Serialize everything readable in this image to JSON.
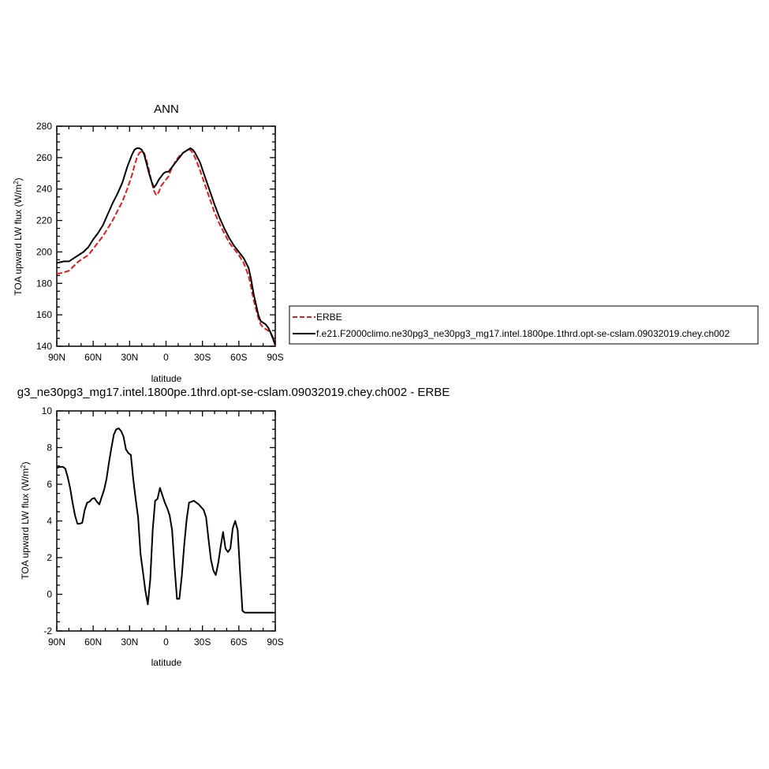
{
  "colors": {
    "erbe": "#e41a1c",
    "model": "#000000",
    "frame": "#000000"
  },
  "chart_data": [
    {
      "type": "line",
      "title": "ANN",
      "xlabel": "latitude",
      "ylabel_main": "TOA upward LW flux (W/m",
      "ylabel_sup": "2",
      "ylabel_close": ")",
      "xlim": [
        -90,
        90
      ],
      "ylim": [
        140,
        280
      ],
      "x_ticks": [
        -90,
        -60,
        -30,
        0,
        30,
        60,
        90
      ],
      "x_tick_labels": [
        "90N",
        "60N",
        "30N",
        "0",
        "30S",
        "60S",
        "90S"
      ],
      "y_ticks": [
        140,
        160,
        180,
        200,
        220,
        240,
        260,
        280
      ],
      "y_tick_labels": [
        "140",
        "160",
        "180",
        "200",
        "220",
        "240",
        "260",
        "280"
      ],
      "legend": {
        "placement": "right",
        "entries": [
          "ERBE",
          "f.e21.F2000climo.ne30pg3_ne30pg3_mg17.intel.1800pe.1thrd.opt-se-cslam.09032019.chey.ch002"
        ]
      },
      "series": [
        {
          "name": "ERBE",
          "style": "dashed",
          "x": [
            -90,
            -84,
            -80,
            -76,
            -72,
            -68,
            -64,
            -60,
            -56,
            -52,
            -48,
            -44,
            -40,
            -36,
            -32,
            -28,
            -26,
            -24,
            -22,
            -20,
            -18,
            -16,
            -14,
            -12,
            -10,
            -8,
            -6,
            -4,
            -2,
            0,
            2,
            4,
            6,
            8,
            10,
            12,
            14,
            16,
            18,
            20,
            22,
            24,
            26,
            28,
            32,
            36,
            40,
            44,
            48,
            52,
            56,
            60,
            64,
            68,
            70,
            72,
            74,
            76,
            78,
            80,
            82,
            84,
            86,
            88,
            90
          ],
          "y": [
            186,
            187,
            188,
            191,
            194,
            196,
            198,
            202,
            206,
            210,
            215,
            220,
            226,
            232,
            240,
            249,
            255,
            260,
            263,
            264,
            263,
            258,
            252,
            245,
            239,
            236,
            238,
            242,
            244,
            246,
            248,
            252,
            255,
            258,
            260,
            262,
            263,
            264,
            265,
            265,
            263,
            260,
            256,
            252,
            243,
            234,
            225,
            218,
            212,
            206,
            202,
            198,
            193,
            185,
            178,
            170,
            164,
            158,
            154,
            152,
            151,
            150,
            149,
            146,
            140
          ]
        },
        {
          "name": "f.e21.F2000climo.ne30pg3_ne30pg3_mg17.intel.1800pe.1thrd.opt-se-cslam.09032019.chey.ch002",
          "style": "solid",
          "x": [
            -90,
            -84,
            -80,
            -76,
            -72,
            -68,
            -64,
            -60,
            -56,
            -52,
            -48,
            -44,
            -40,
            -36,
            -32,
            -28,
            -26,
            -24,
            -22,
            -20,
            -18,
            -16,
            -14,
            -12,
            -10,
            -8,
            -6,
            -4,
            -2,
            0,
            2,
            4,
            6,
            8,
            10,
            12,
            14,
            16,
            18,
            20,
            22,
            24,
            26,
            28,
            32,
            36,
            40,
            44,
            48,
            52,
            56,
            60,
            64,
            68,
            70,
            72,
            74,
            76,
            78,
            80,
            82,
            84,
            86,
            88,
            90
          ],
          "y": [
            193,
            194,
            194,
            196,
            198,
            200,
            203,
            208,
            212,
            217,
            224,
            231,
            237,
            244,
            254,
            262,
            265,
            266,
            266,
            265,
            262,
            256,
            250,
            245,
            241,
            243,
            246,
            248,
            250,
            251,
            251,
            253,
            255,
            257,
            259,
            261,
            263,
            264,
            265,
            266,
            265,
            263,
            260,
            257,
            248,
            239,
            230,
            222,
            215,
            209,
            204,
            200,
            196,
            190,
            183,
            174,
            167,
            160,
            156,
            155,
            154,
            152,
            149,
            145,
            141
          ]
        }
      ]
    },
    {
      "type": "line",
      "title": "g3_ne30pg3_mg17.intel.1800pe.1thrd.opt-se-cslam.09032019.chey.ch002 - ERBE",
      "xlabel": "latitude",
      "ylabel_main": "TOA upward LW flux (W/m",
      "ylabel_sup": "2",
      "ylabel_close": ")",
      "xlim": [
        -90,
        90
      ],
      "ylim": [
        -2,
        10
      ],
      "x_ticks": [
        -90,
        -60,
        -30,
        0,
        30,
        60,
        90
      ],
      "x_tick_labels": [
        "90N",
        "60N",
        "30N",
        "0",
        "30S",
        "60S",
        "90S"
      ],
      "y_ticks": [
        -2,
        0,
        2,
        4,
        6,
        8,
        10
      ],
      "y_tick_labels": [
        "-2",
        "0",
        "2",
        "4",
        "6",
        "8",
        "10"
      ],
      "series": [
        {
          "style": "solid",
          "x": [
            -90,
            -87,
            -85,
            -83,
            -81,
            -79,
            -77,
            -75,
            -73,
            -71,
            -69,
            -67,
            -65,
            -63,
            -61,
            -59,
            -57,
            -55,
            -53,
            -51,
            -49,
            -47,
            -45,
            -43,
            -41,
            -39,
            -37,
            -35,
            -33,
            -31,
            -29,
            -27,
            -25,
            -23,
            -21,
            -19,
            -17,
            -15,
            -13,
            -11,
            -9,
            -7,
            -5,
            -3,
            -1,
            1,
            3,
            5,
            7,
            9,
            11,
            13,
            15,
            17,
            19,
            21,
            23,
            25,
            27,
            29,
            31,
            33,
            35,
            37,
            39,
            41,
            43,
            45,
            47,
            49,
            51,
            53,
            55,
            57,
            59,
            61,
            63,
            65,
            67,
            69,
            71,
            73,
            75,
            77,
            79,
            81,
            83,
            85,
            87,
            89
          ],
          "y": [
            6.9,
            6.95,
            6.95,
            6.85,
            6.4,
            5.8,
            5.0,
            4.3,
            3.85,
            3.85,
            3.9,
            4.6,
            5.0,
            5.05,
            5.2,
            5.25,
            5.05,
            4.9,
            5.3,
            5.7,
            6.3,
            7.2,
            8.0,
            8.7,
            9.0,
            9.05,
            8.9,
            8.6,
            7.9,
            7.7,
            7.6,
            6.3,
            5.2,
            4.2,
            2.2,
            1.2,
            0.2,
            -0.55,
            0.8,
            3.5,
            5.1,
            5.2,
            5.8,
            5.4,
            5.0,
            4.7,
            4.3,
            3.5,
            1.5,
            -0.25,
            -0.25,
            1.0,
            2.7,
            4.1,
            5.0,
            5.05,
            5.1,
            5.0,
            4.9,
            4.75,
            4.6,
            4.2,
            3.0,
            1.9,
            1.3,
            1.05,
            1.7,
            2.6,
            3.4,
            2.5,
            2.3,
            2.5,
            3.6,
            4.0,
            3.5,
            1.2,
            -0.9,
            -1.0,
            -1.0,
            -1.0,
            -1.0,
            -1.0,
            -1.0,
            -1.0,
            -1.0,
            -1.0,
            -1.0,
            -1.0,
            -1.0,
            -1.0
          ]
        }
      ]
    }
  ]
}
